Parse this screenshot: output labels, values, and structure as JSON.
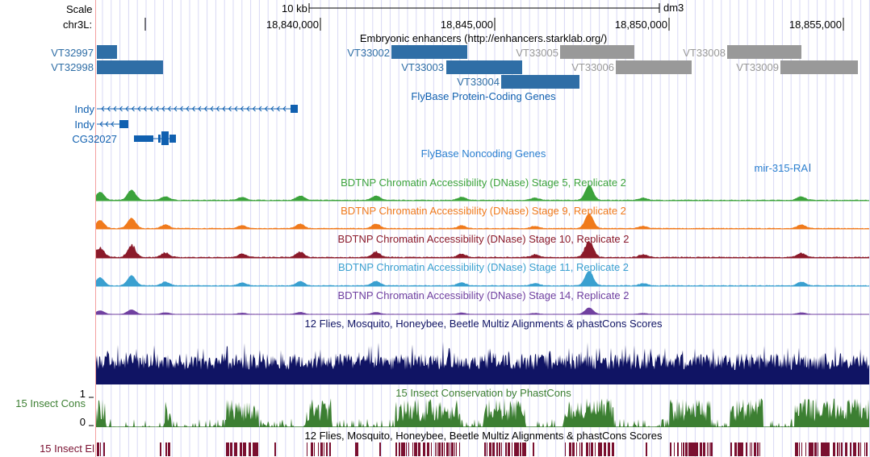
{
  "scale": {
    "label": "Scale",
    "bar_text": "10 kb",
    "assembly": "dm3"
  },
  "ruler": {
    "chrom_label": "chr3L:",
    "ticks": [
      "18,840,000",
      "18,845,000",
      "18,850,000",
      "18,855,000"
    ]
  },
  "enhancers": {
    "title": "Embryonic enhancers (http://enhancers.starklab.org/)",
    "items": [
      {
        "name": "VT32997",
        "color": "#2f6ea6"
      },
      {
        "name": "VT32998",
        "color": "#2f6ea6"
      },
      {
        "name": "VT33002",
        "color": "#2f6ea6"
      },
      {
        "name": "VT33003",
        "color": "#2f6ea6"
      },
      {
        "name": "VT33004",
        "color": "#2f6ea6"
      },
      {
        "name": "VT33005",
        "color": "#999999"
      },
      {
        "name": "VT33006",
        "color": "#999999"
      },
      {
        "name": "VT33008",
        "color": "#999999"
      },
      {
        "name": "VT33009",
        "color": "#999999"
      }
    ]
  },
  "protein_genes": {
    "title": "FlyBase Protein-Coding Genes",
    "genes": [
      "Indy",
      "Indy",
      "CG32027"
    ],
    "color": "#1060b0"
  },
  "noncoding_genes": {
    "title": "FlyBase Noncoding Genes",
    "gene": "mir-315-RA"
  },
  "dnase_tracks": [
    {
      "title": "BDTNP Chromatin Accessibility (DNase) Stage 5, Replicate 2",
      "color": "#3ca33c"
    },
    {
      "title": "BDTNP Chromatin Accessibility (DNase) Stage 9, Replicate 2",
      "color": "#f07a1c"
    },
    {
      "title": "BDTNP Chromatin Accessibility (DNase) Stage 10, Replicate 2",
      "color": "#8b1a2a"
    },
    {
      "title": "BDTNP Chromatin Accessibility (DNase) Stage 11, Replicate 2",
      "color": "#3aa0d0"
    },
    {
      "title": "BDTNP Chromatin Accessibility (DNase) Stage 14, Replicate 2",
      "color": "#7040a0"
    }
  ],
  "multiz": {
    "title": "12 Flies, Mosquito, Honeybee, Beetle Multiz Alignments & phastCons Scores",
    "color": "#101464"
  },
  "cons": {
    "title": "15 Insect Conservation by PhastCons",
    "label": "15 Insect Cons",
    "ymax": "1",
    "ymin": "0",
    "color": "#3c7f32"
  },
  "elements": {
    "title": "12 Flies, Mosquito, Honeybee, Beetle Multiz Alignments & phastCons Scores",
    "label": "15 Insect El",
    "color": "#7a1030"
  }
}
